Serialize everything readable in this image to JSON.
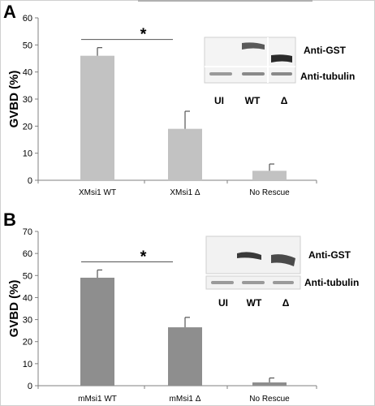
{
  "chart_data": [
    {
      "panel": "A",
      "type": "bar",
      "categories": [
        "XMsi1 WT",
        "XMsi1 Δ",
        "No Rescue"
      ],
      "values": [
        46,
        19,
        3.5
      ],
      "errors": [
        3,
        6.5,
        2.5
      ],
      "ylabel": "GVBD (%)",
      "ylim": [
        0,
        60
      ],
      "yticks": [
        0,
        10,
        20,
        30,
        40,
        50,
        60
      ],
      "bar_color": "#c2c2c2",
      "significance": {
        "from": 0,
        "to": 1,
        "label": "*"
      },
      "blot": {
        "rows": [
          "Anti-GST",
          "Anti-tubulin"
        ],
        "lanes": [
          "UI",
          "WT",
          "Δ"
        ]
      }
    },
    {
      "panel": "B",
      "type": "bar",
      "categories": [
        "mMsi1 WT",
        "mMsi1 Δ",
        "No Rescue"
      ],
      "values": [
        49,
        26.5,
        1.5
      ],
      "errors": [
        3.5,
        4.5,
        2
      ],
      "ylabel": "GVBD (%)",
      "ylim": [
        0,
        70
      ],
      "yticks": [
        0,
        10,
        20,
        30,
        40,
        50,
        60,
        70
      ],
      "bar_color": "#8e8e8e",
      "significance": {
        "from": 0,
        "to": 1,
        "label": "*"
      },
      "blot": {
        "rows": [
          "Anti-GST",
          "Anti-tubulin"
        ],
        "lanes": [
          "UI",
          "WT",
          "Δ"
        ]
      }
    }
  ]
}
